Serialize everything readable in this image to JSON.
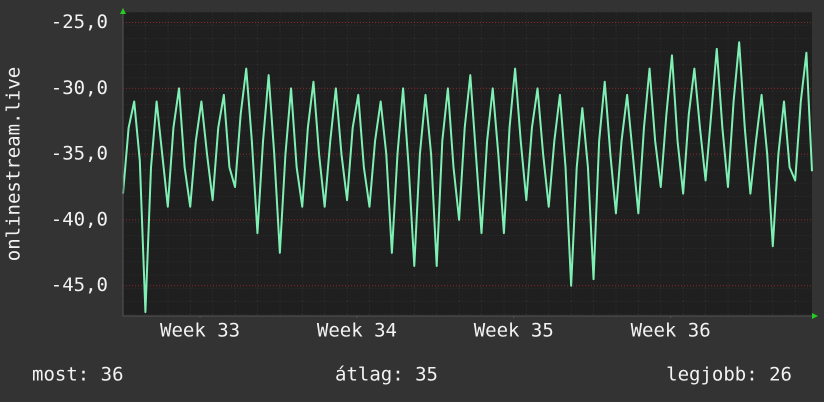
{
  "chart_data": {
    "type": "line",
    "y_label": "onlinestream.live",
    "x": [
      0,
      0.25,
      0.5,
      0.75,
      1,
      1.25,
      1.5,
      1.75,
      2,
      2.25,
      2.5,
      2.75,
      3,
      3.25,
      3.5,
      3.75,
      4,
      4.25,
      4.5,
      4.75,
      5,
      5.25,
      5.5,
      5.75,
      6,
      6.25,
      6.5,
      6.75,
      7,
      7.25,
      7.5,
      7.75,
      8,
      8.25,
      8.5,
      8.75,
      9,
      9.25,
      9.5,
      9.75,
      10,
      10.25,
      10.5,
      10.75,
      11,
      11.25,
      11.5,
      11.75,
      12,
      12.25,
      12.5,
      12.75,
      13,
      13.25,
      13.5,
      13.75,
      14,
      14.25,
      14.5,
      14.75,
      15,
      15.25,
      15.5,
      15.75,
      16,
      16.25,
      16.5,
      16.75,
      17,
      17.25,
      17.5,
      17.75,
      18,
      18.25,
      18.5,
      18.75,
      19,
      19.25,
      19.5,
      19.75,
      20,
      20.25,
      20.5,
      20.75,
      21,
      21.25,
      21.5,
      21.75,
      22,
      22.25,
      22.5,
      22.75,
      23,
      23.25,
      23.5,
      23.75,
      24,
      24.25,
      24.5,
      24.75,
      25,
      25.25,
      25.5,
      25.75,
      26,
      26.25,
      26.5,
      26.75,
      27,
      27.25,
      27.5,
      27.75,
      28,
      28.25,
      28.5,
      28.75,
      29,
      29.25,
      29.5,
      29.75,
      30,
      30.25,
      30.5,
      30.75
    ],
    "series": [
      {
        "color": "#7ff0b4",
        "values": [
          -38,
          -33,
          -31,
          -35.5,
          -47,
          -36,
          -31,
          -35,
          -39,
          -33,
          -30,
          -36,
          -39,
          -34,
          -31,
          -35,
          -38.5,
          -33,
          -30.5,
          -36,
          -37.5,
          -32,
          -28.5,
          -34,
          -41,
          -34,
          -29,
          -35,
          -42.5,
          -35,
          -30,
          -36,
          -39,
          -33,
          -29.5,
          -35,
          -39,
          -34,
          -30,
          -35,
          -38.5,
          -33,
          -30.5,
          -36,
          -39,
          -34,
          -31,
          -35,
          -42.5,
          -35,
          -30,
          -36,
          -43.5,
          -35,
          -30.5,
          -35,
          -43.5,
          -34,
          -30,
          -36,
          -40,
          -33,
          -29,
          -35,
          -41,
          -34,
          -30,
          -35,
          -41,
          -33,
          -28.5,
          -34,
          -38.5,
          -33,
          -30,
          -35,
          -39,
          -34,
          -30.5,
          -36,
          -45,
          -36,
          -31.5,
          -36,
          -44.5,
          -34,
          -29.5,
          -35,
          -39.5,
          -34,
          -30.5,
          -35,
          -39.5,
          -33,
          -28.5,
          -34,
          -37.5,
          -32,
          -27.5,
          -34,
          -38,
          -32,
          -28.5,
          -33,
          -37,
          -32,
          -27,
          -33,
          -37.5,
          -31,
          -26.5,
          -33,
          -38,
          -34,
          -30.5,
          -35,
          -42,
          -35,
          -31,
          -36,
          -37,
          -31,
          -27.3,
          -36.3
        ]
      }
    ],
    "xlim": [
      0,
      30.75
    ],
    "xticks": [
      {
        "value": 3.44,
        "label": "Week 33"
      },
      {
        "value": 10.44,
        "label": "Week 34"
      },
      {
        "value": 17.44,
        "label": "Week 35"
      },
      {
        "value": 24.44,
        "label": "Week 36"
      }
    ],
    "ylim": [
      -47.3,
      -24.2
    ],
    "yticks": [
      {
        "value": -45,
        "label": "-45,0"
      },
      {
        "value": -40,
        "label": "-40,0"
      },
      {
        "value": -35,
        "label": "-35,0"
      },
      {
        "value": -30,
        "label": "-30,0"
      },
      {
        "value": -25,
        "label": "-25,0"
      }
    ],
    "grid": true,
    "footer": [
      "most: 36",
      "átlag: 35",
      "legjobb: 26"
    ]
  }
}
